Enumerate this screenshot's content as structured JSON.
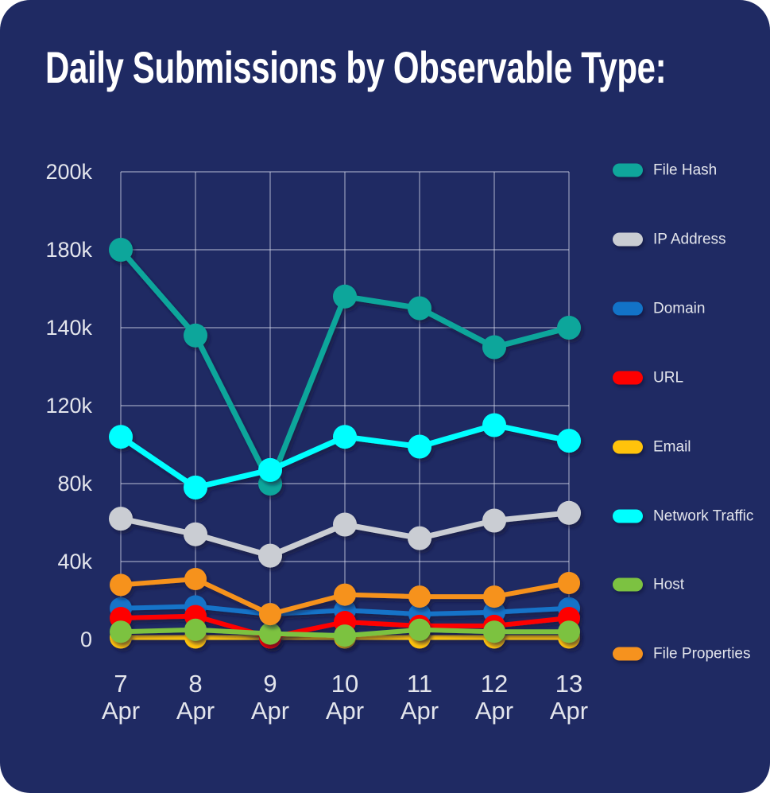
{
  "chart_data": {
    "type": "line",
    "title": "Daily Submissions by Observable Type:",
    "categories": [
      "7 Apr",
      "8 Apr",
      "9 Apr",
      "10 Apr",
      "11 Apr",
      "12 Apr",
      "13 Apr"
    ],
    "xlabel": "",
    "ylabel": "",
    "grid": true,
    "legend_position": "right",
    "background_color": "#1F2A63",
    "gridline_color": "#DADFEE",
    "tick_text_color": "#E3E5EC",
    "y_ticks": [
      {
        "label": "0",
        "value": 0
      },
      {
        "label": "40k",
        "value": 40000
      },
      {
        "label": "80k",
        "value": 80000
      },
      {
        "label": "120k",
        "value": 120000
      },
      {
        "label": "140k",
        "value": 140000
      },
      {
        "label": "180k",
        "value": 180000
      },
      {
        "label": "200k",
        "value": 200000
      }
    ],
    "series": [
      {
        "name": "File Hash",
        "key": "file-hash",
        "color": "#0FA69B",
        "values": [
          180000,
          138000,
          80000,
          156000,
          150000,
          135000,
          140000
        ]
      },
      {
        "name": "IP Address",
        "key": "ip-address",
        "color": "#CACDD3",
        "values": [
          62000,
          54000,
          43000,
          59000,
          52000,
          61000,
          65000
        ]
      },
      {
        "name": "Domain",
        "key": "domain",
        "color": "#1273C8",
        "values": [
          16000,
          17000,
          13000,
          15000,
          13000,
          14000,
          16000
        ]
      },
      {
        "name": "URL",
        "key": "url",
        "color": "#FE0000",
        "values": [
          11000,
          12000,
          1000,
          9000,
          7000,
          7000,
          11000
        ]
      },
      {
        "name": "Email",
        "key": "email",
        "color": "#FFC30B",
        "values": [
          1000,
          1000,
          1000,
          1000,
          1000,
          1000,
          1000
        ]
      },
      {
        "name": "Network Traffic",
        "key": "network-traffic",
        "color": "#00FFFF",
        "values": [
          104000,
          78000,
          87000,
          104000,
          99000,
          110000,
          102000
        ]
      },
      {
        "name": "Host",
        "key": "host",
        "color": "#7CC241",
        "values": [
          4000,
          5000,
          3000,
          2000,
          5000,
          4000,
          4000
        ]
      },
      {
        "name": "File Properties",
        "key": "file-properties",
        "color": "#F6921E",
        "values": [
          28000,
          31000,
          13000,
          23000,
          22000,
          22000,
          29000
        ]
      }
    ],
    "draw_order": [
      "file-hash",
      "network-traffic",
      "ip-address",
      "email",
      "domain",
      "url",
      "host",
      "file-properties"
    ]
  }
}
